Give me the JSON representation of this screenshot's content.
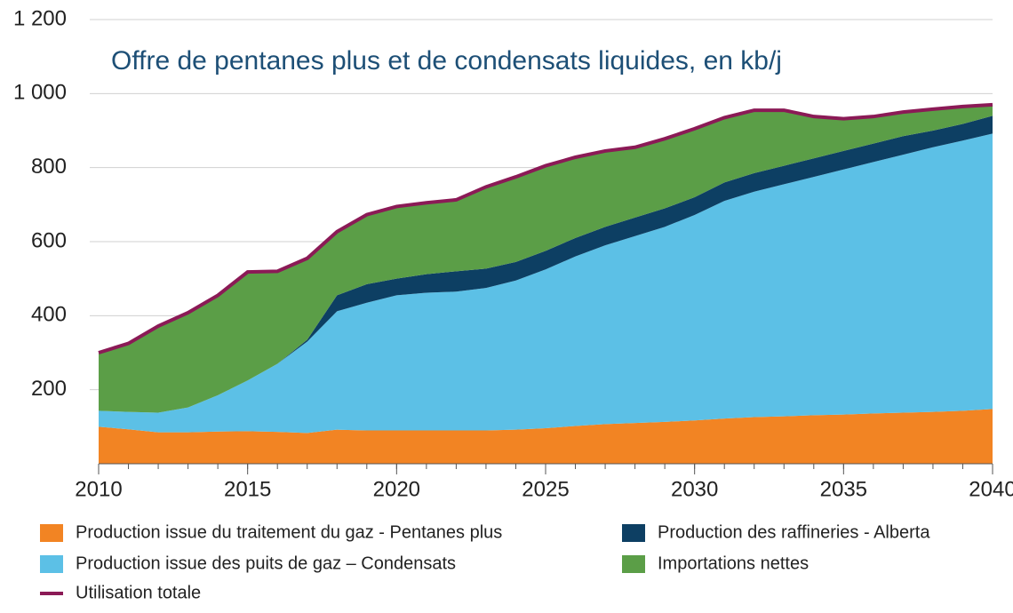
{
  "chart_data": {
    "type": "area",
    "stacked": true,
    "title": "Offre de pentanes plus et de condensats liquides, en kb/j",
    "x": [
      2010,
      2011,
      2012,
      2013,
      2014,
      2015,
      2016,
      2017,
      2018,
      2019,
      2020,
      2021,
      2022,
      2023,
      2024,
      2025,
      2026,
      2027,
      2028,
      2029,
      2030,
      2031,
      2032,
      2033,
      2034,
      2035,
      2036,
      2037,
      2038,
      2039,
      2040
    ],
    "series": [
      {
        "name": "Production issue du traitement du gaz - Pentanes plus",
        "kind": "area",
        "color": "#f28423",
        "values": [
          100,
          93,
          85,
          85,
          87,
          88,
          86,
          83,
          92,
          90,
          90,
          90,
          90,
          90,
          92,
          96,
          102,
          107,
          110,
          113,
          117,
          122,
          126,
          128,
          131,
          133,
          136,
          138,
          140,
          143,
          148
        ]
      },
      {
        "name": "Production issue des puits de gaz – Condensats",
        "kind": "area",
        "color": "#5cc0e6",
        "values": [
          43,
          47,
          53,
          67,
          98,
          137,
          184,
          247,
          320,
          345,
          365,
          372,
          375,
          385,
          403,
          429,
          458,
          483,
          505,
          527,
          555,
          588,
          609,
          627,
          644,
          662,
          679,
          697,
          715,
          730,
          744
        ]
      },
      {
        "name": "Production des raffineries - Alberta",
        "kind": "area",
        "color": "#0d3f63",
        "values": [
          0,
          0,
          0,
          0,
          0,
          0,
          0,
          5,
          43,
          50,
          45,
          50,
          55,
          52,
          50,
          50,
          50,
          50,
          50,
          50,
          48,
          50,
          50,
          50,
          50,
          50,
          50,
          50,
          45,
          45,
          48
        ]
      },
      {
        "name": "Importations nettes",
        "kind": "area",
        "color": "#5b9e47",
        "values": [
          157,
          185,
          234,
          256,
          270,
          293,
          250,
          220,
          172,
          188,
          195,
          193,
          193,
          221,
          230,
          230,
          218,
          205,
          190,
          188,
          185,
          175,
          170,
          150,
          113,
          87,
          73,
          65,
          58,
          47,
          30
        ]
      },
      {
        "name": "Utilisation totale",
        "kind": "line",
        "color": "#8b1a56",
        "values": [
          300,
          325,
          372,
          408,
          455,
          518,
          520,
          555,
          627,
          673,
          695,
          705,
          713,
          748,
          775,
          805,
          828,
          845,
          855,
          878,
          905,
          935,
          955,
          955,
          938,
          932,
          938,
          950,
          958,
          965,
          970
        ]
      }
    ],
    "xlim": [
      2010,
      2040
    ],
    "xticks": [
      2010,
      2015,
      2020,
      2025,
      2030,
      2035,
      2040
    ],
    "ylim": [
      0,
      1200
    ],
    "yticks": [
      200,
      400,
      600,
      800,
      {
        "value": 1000,
        "label": "1 000"
      },
      {
        "value": 1200,
        "label": "1 200"
      }
    ],
    "grid": true
  }
}
